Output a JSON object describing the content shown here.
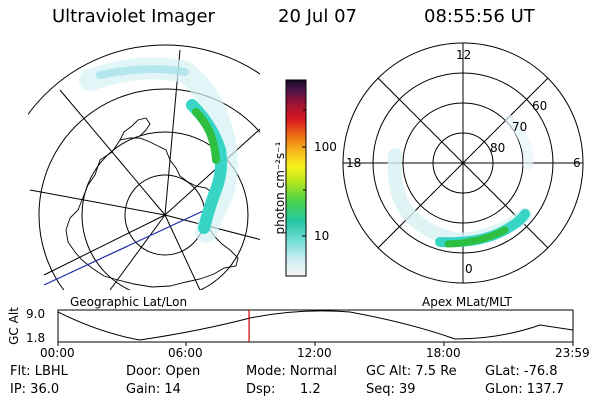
{
  "header": {
    "instrument": "Ultraviolet Imager",
    "date": "20 Jul 07",
    "time": "08:55:56 UT"
  },
  "colorbar": {
    "unit_label": "photon cm⁻²s⁻¹",
    "ticks": [
      "100",
      "10"
    ]
  },
  "geo_panel": {
    "caption": "Geographic Lat/Lon"
  },
  "mag_panel": {
    "caption": "Apex MLat/MLT",
    "mlt_labels": [
      "12",
      "18",
      "6",
      "0"
    ],
    "lat_labels": [
      "60",
      "70",
      "80"
    ]
  },
  "altitude_plot": {
    "ylabel": "GC Alt",
    "y_ticks": [
      "9.0",
      "1.8"
    ],
    "x_ticks": [
      "00:00",
      "06:00",
      "12:00",
      "18:00",
      "23:59"
    ],
    "current_time_fraction": 0.371
  },
  "info": {
    "filter": "Flt: LBHL",
    "ip": "IP: 36.0",
    "door": "Door: Open",
    "gain": "Gain: 14",
    "mode": "Mode: Normal",
    "dsp_label": "Dsp:",
    "dsp_value": "1.2",
    "gc_alt": "GC Alt: 7.5 Re",
    "seq": "Seq: 39",
    "glat": "GLat: -76.8",
    "glon": "GLon: 137.7"
  },
  "colors": {
    "aurora_low": "#bfe9ee",
    "aurora_mid": "#33d6c4",
    "aurora_high": "#2fbf40",
    "current_marker": "#d00000",
    "projection_line": "#1c2aa8"
  }
}
